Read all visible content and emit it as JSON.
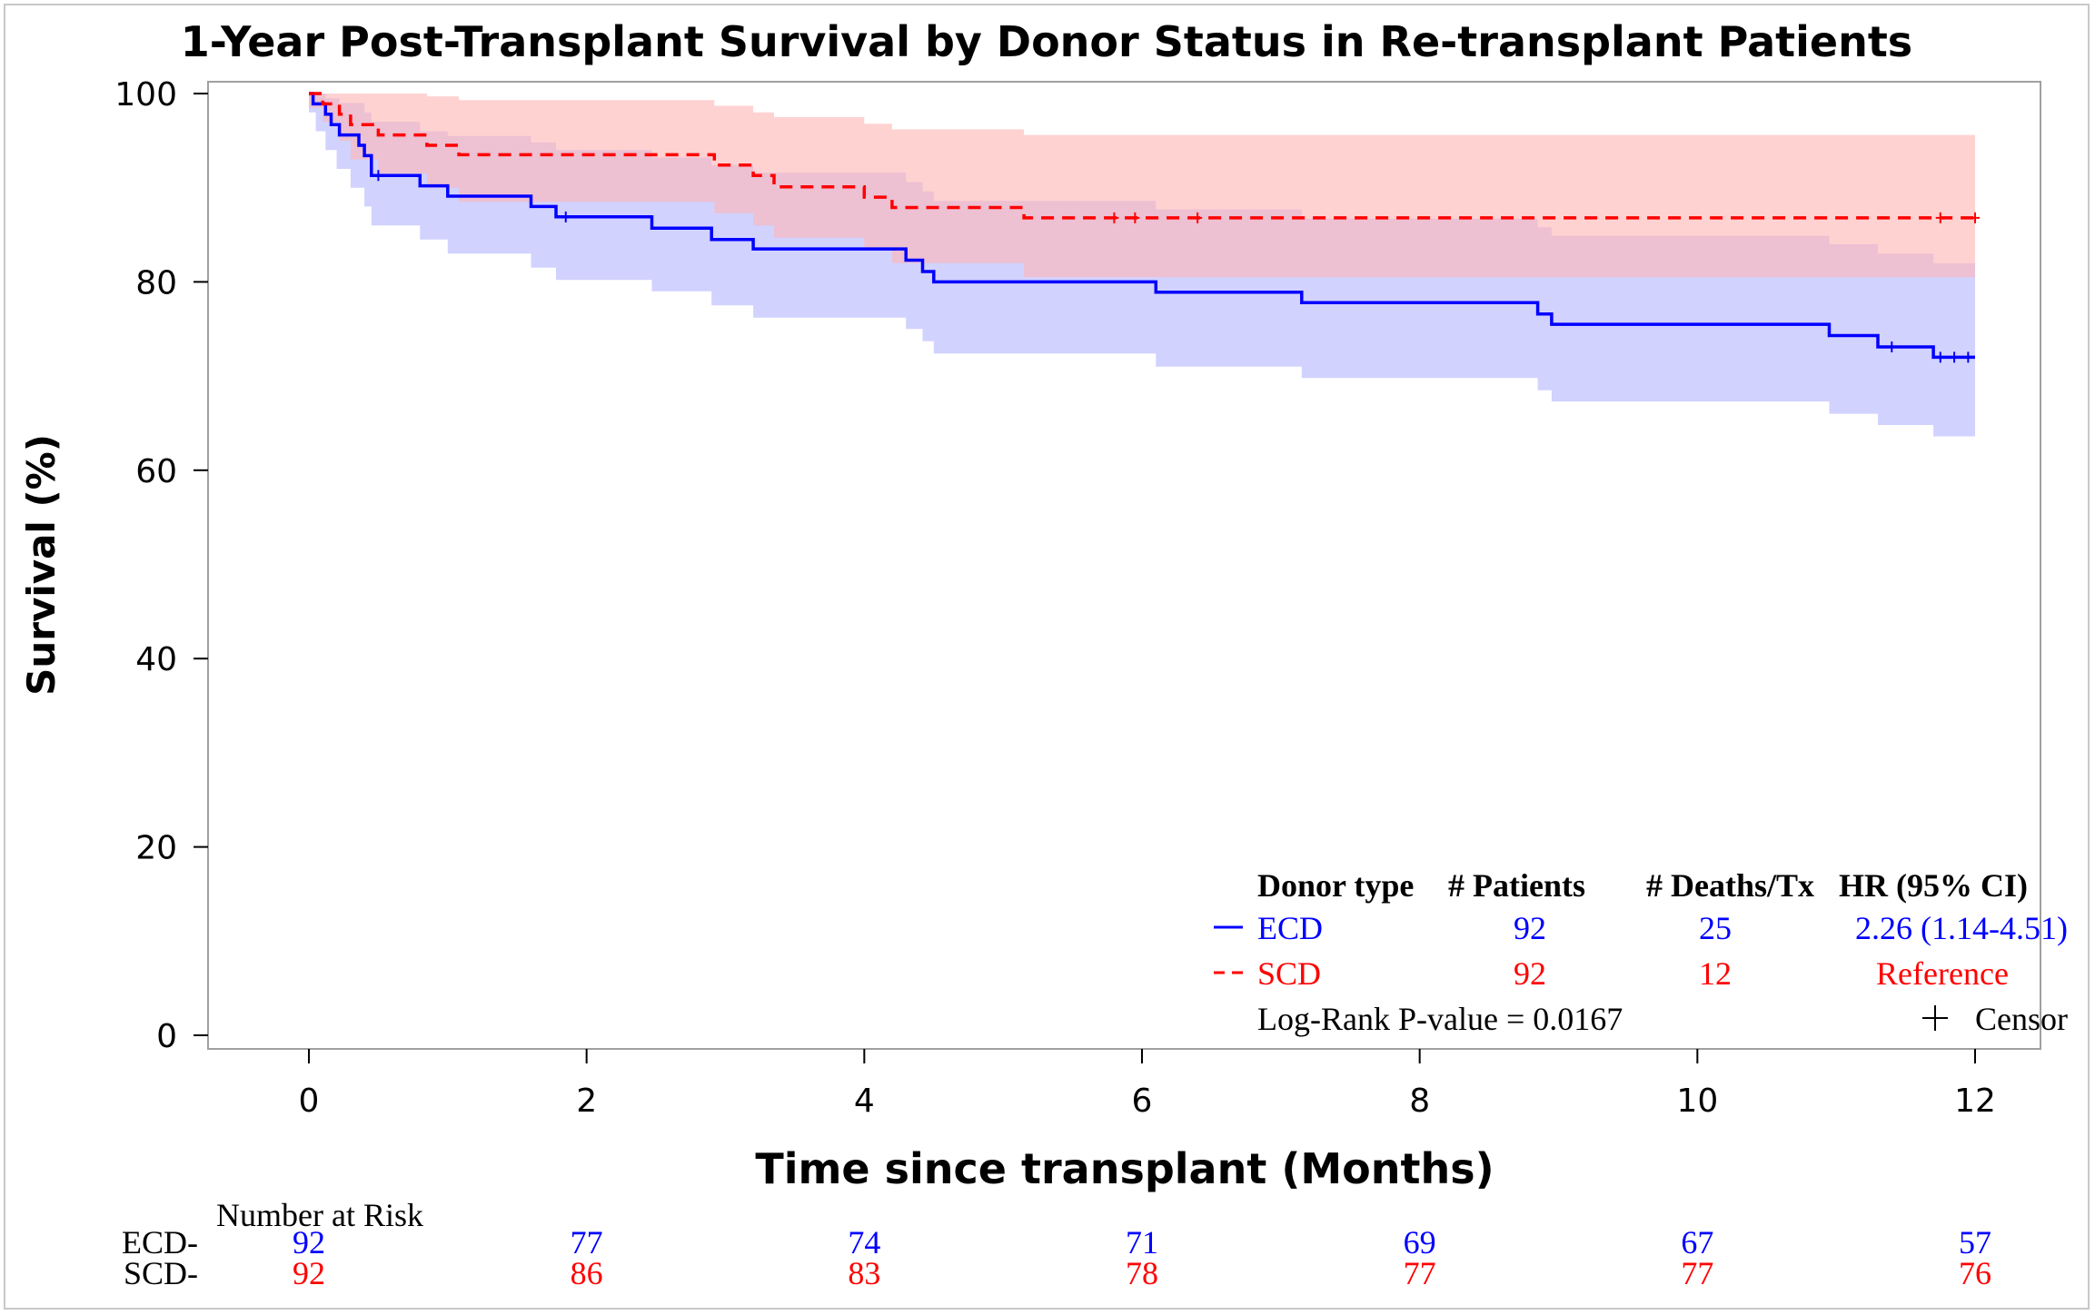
{
  "chart_data": {
    "type": "line",
    "subtype": "kaplan-meier",
    "title": "1-Year Post-Transplant Survival by Donor Status in Re-transplant Patients",
    "xlabel": "Time since transplant (Months)",
    "ylabel": "Survival (%)",
    "xlim": [
      0,
      12
    ],
    "ylim": [
      0,
      100
    ],
    "xticks": [
      0,
      2,
      4,
      6,
      8,
      10,
      12
    ],
    "yticks": [
      0,
      20,
      40,
      60,
      80,
      100
    ],
    "grid": false,
    "legend_placement": "bottom-right",
    "series": [
      {
        "name": "ECD",
        "color": "#0000ff",
        "band_color": "#b4b4ff",
        "line_style": "solid",
        "steps": [
          [
            0,
            100
          ],
          [
            0.03,
            98.9
          ],
          [
            0.12,
            97.8
          ],
          [
            0.16,
            96.7
          ],
          [
            0.22,
            95.6
          ],
          [
            0.36,
            94.5
          ],
          [
            0.4,
            93.4
          ],
          [
            0.45,
            91.3
          ],
          [
            0.8,
            90.2
          ],
          [
            1.0,
            89.1
          ],
          [
            1.6,
            88.0
          ],
          [
            1.78,
            86.9
          ],
          [
            2.47,
            85.7
          ],
          [
            2.9,
            84.5
          ],
          [
            3.2,
            83.5
          ],
          [
            4.3,
            82.3
          ],
          [
            4.42,
            81.1
          ],
          [
            4.5,
            80.0
          ],
          [
            6.1,
            78.9
          ],
          [
            7.15,
            77.8
          ],
          [
            8.85,
            76.6
          ],
          [
            8.95,
            75.5
          ],
          [
            10.95,
            74.3
          ],
          [
            11.3,
            73.1
          ],
          [
            11.7,
            72.0
          ],
          [
            12.0,
            72.0
          ]
        ],
        "lower": [
          [
            0,
            98
          ],
          [
            0.05,
            96
          ],
          [
            0.12,
            94
          ],
          [
            0.2,
            92
          ],
          [
            0.3,
            90
          ],
          [
            0.4,
            88
          ],
          [
            0.45,
            86
          ],
          [
            0.8,
            84.5
          ],
          [
            1.0,
            83
          ],
          [
            1.6,
            81.5
          ],
          [
            1.78,
            80.2
          ],
          [
            2.47,
            79
          ],
          [
            2.9,
            77.5
          ],
          [
            3.2,
            76.2
          ],
          [
            4.3,
            75
          ],
          [
            4.42,
            73.7
          ],
          [
            4.5,
            72.4
          ],
          [
            6.1,
            71
          ],
          [
            7.15,
            69.8
          ],
          [
            8.85,
            68.5
          ],
          [
            8.95,
            67.3
          ],
          [
            10.95,
            66
          ],
          [
            11.3,
            64.8
          ],
          [
            11.7,
            63.6
          ],
          [
            12.0,
            63.6
          ]
        ],
        "upper": [
          [
            0,
            100
          ],
          [
            0.12,
            99.5
          ],
          [
            0.22,
            99
          ],
          [
            0.4,
            98
          ],
          [
            0.45,
            97
          ],
          [
            0.8,
            96
          ],
          [
            1.0,
            95.5
          ],
          [
            1.6,
            94.8
          ],
          [
            1.78,
            94
          ],
          [
            2.47,
            93.2
          ],
          [
            2.9,
            92.4
          ],
          [
            3.2,
            91.6
          ],
          [
            4.3,
            90.6
          ],
          [
            4.42,
            89.6
          ],
          [
            4.5,
            88.6
          ],
          [
            6.1,
            87.7
          ],
          [
            7.15,
            86.7
          ],
          [
            8.85,
            85.8
          ],
          [
            8.95,
            84.9
          ],
          [
            10.95,
            84
          ],
          [
            11.3,
            83
          ],
          [
            11.7,
            82
          ],
          [
            12.0,
            82
          ]
        ],
        "censors": [
          [
            0.5,
            91.3
          ],
          [
            1.85,
            86.9
          ],
          [
            11.4,
            73.1
          ],
          [
            11.75,
            72.0
          ],
          [
            11.85,
            72.0
          ],
          [
            11.95,
            72.0
          ]
        ]
      },
      {
        "name": "SCD",
        "color": "#ff0000",
        "band_color": "#ffb4b4",
        "line_style": "dashed",
        "steps": [
          [
            0,
            100
          ],
          [
            0.1,
            98.9
          ],
          [
            0.22,
            97.8
          ],
          [
            0.3,
            96.7
          ],
          [
            0.5,
            95.6
          ],
          [
            0.85,
            94.5
          ],
          [
            1.08,
            93.5
          ],
          [
            2.92,
            92.4
          ],
          [
            3.2,
            91.3
          ],
          [
            3.35,
            90.1
          ],
          [
            4.0,
            89.0
          ],
          [
            4.2,
            87.9
          ],
          [
            5.15,
            86.8
          ],
          [
            12.0,
            86.8
          ]
        ],
        "lower": [
          [
            0,
            98.5
          ],
          [
            0.1,
            97
          ],
          [
            0.22,
            95
          ],
          [
            0.3,
            93
          ],
          [
            0.5,
            91.5
          ],
          [
            0.85,
            90
          ],
          [
            1.08,
            88.5
          ],
          [
            2.92,
            87.3
          ],
          [
            3.2,
            86
          ],
          [
            3.35,
            84.7
          ],
          [
            4.0,
            83.4
          ],
          [
            4.2,
            82
          ],
          [
            5.15,
            80.5
          ],
          [
            12.0,
            80.5
          ]
        ],
        "upper": [
          [
            0,
            100
          ],
          [
            0.5,
            100
          ],
          [
            0.85,
            99.7
          ],
          [
            1.08,
            99.3
          ],
          [
            2.92,
            98.7
          ],
          [
            3.2,
            98
          ],
          [
            3.35,
            97.5
          ],
          [
            4.0,
            96.8
          ],
          [
            4.2,
            96.2
          ],
          [
            5.15,
            95.6
          ],
          [
            12.0,
            95.6
          ]
        ],
        "censors": [
          [
            5.8,
            86.8
          ],
          [
            5.95,
            86.8
          ],
          [
            6.4,
            86.8
          ],
          [
            11.75,
            86.8
          ],
          [
            12.0,
            86.8
          ]
        ]
      }
    ]
  },
  "legend": {
    "headers": {
      "donor_type": "Donor type",
      "patients": "# Patients",
      "deaths": "# Deaths/Tx",
      "hr": "HR (95% CI)"
    },
    "rows": [
      {
        "name": "ECD",
        "patients": "92",
        "deaths": "25",
        "hr": "2.26 (1.14-4.51)"
      },
      {
        "name": "SCD",
        "patients": "92",
        "deaths": "12",
        "hr": "Reference"
      }
    ],
    "pvalue": "Log-Rank P-value = 0.0167",
    "censor": "Censor"
  },
  "risk_table": {
    "title": "Number at Risk",
    "rows": [
      {
        "label": "ECD-",
        "values": [
          "92",
          "77",
          "74",
          "71",
          "69",
          "67",
          "57"
        ]
      },
      {
        "label": "SCD-",
        "values": [
          "92",
          "86",
          "83",
          "78",
          "77",
          "77",
          "76"
        ]
      }
    ]
  }
}
